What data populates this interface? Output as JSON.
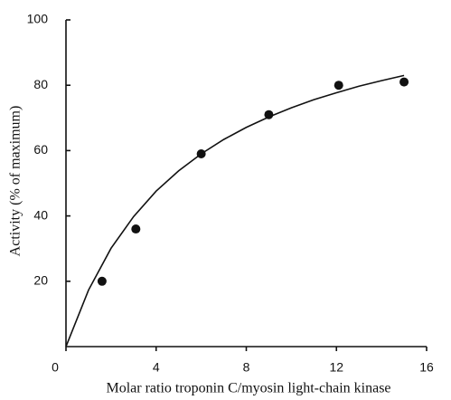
{
  "chart_data": {
    "type": "scatter",
    "x_label": "Molar ratio troponin C/myosin light-chain kinase",
    "y_label": "Activity (% of maximum)",
    "xlim": [
      0,
      16
    ],
    "xticks": [
      0,
      4,
      8,
      12,
      16
    ],
    "ylim": [
      0,
      100
    ],
    "yticks": [
      20,
      40,
      60,
      80,
      100
    ],
    "series": [
      {
        "type": "scatter",
        "color": "#111111",
        "x": [
          1.6,
          3.1,
          6.0,
          9.0,
          12.1,
          15.0
        ],
        "values": [
          20,
          36,
          59,
          71,
          80,
          81
        ]
      },
      {
        "type": "line",
        "color": "#111111",
        "x": [
          0,
          1,
          2,
          3,
          4,
          5,
          6,
          7,
          8,
          9,
          10,
          11,
          12,
          13,
          14,
          15
        ],
        "values": [
          0,
          17.3,
          30.1,
          39.8,
          47.6,
          53.8,
          59.0,
          63.4,
          67.1,
          70.3,
          73.1,
          75.6,
          77.7,
          79.7,
          81.4,
          83.0
        ]
      }
    ]
  }
}
